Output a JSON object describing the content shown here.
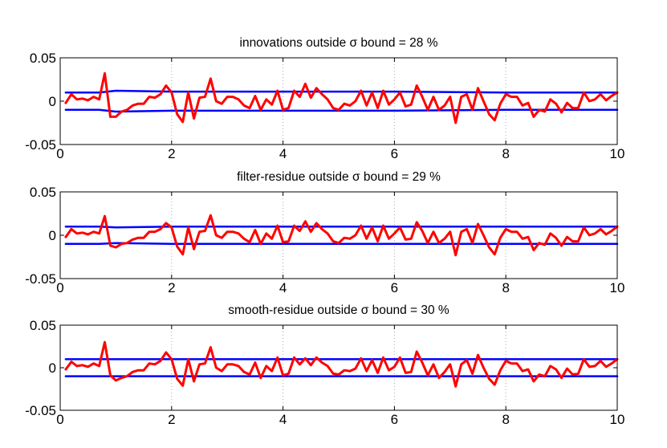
{
  "colors": {
    "bound": "#0000ff",
    "residual": "#ff0000",
    "axis": "#000000",
    "grid": "#aaaaaa"
  },
  "chart_data": [
    {
      "type": "line",
      "title": "innovations outside σ bound = 28 %",
      "xlim": [
        0,
        10
      ],
      "ylim": [
        -0.05,
        0.05
      ],
      "xticks": [
        0,
        2,
        4,
        6,
        8,
        10
      ],
      "xtick_labels": [
        "0",
        "2",
        "4",
        "6",
        "8",
        "10"
      ],
      "yticks": [
        -0.05,
        0,
        0.05
      ],
      "ytick_labels": [
        "-0.05",
        "0",
        "0.05"
      ],
      "grid": "vertical dotted at x ticks",
      "series": [
        {
          "values_kind": "upper bound",
          "x": [
            0.1,
            0.7,
            1.0,
            2.0,
            4.0,
            6.0,
            8.0,
            10.0
          ],
          "y": [
            0.01,
            0.01,
            0.012,
            0.011,
            0.011,
            0.011,
            0.01,
            0.01
          ]
        },
        {
          "values_kind": "lower bound",
          "x": [
            0.1,
            0.7,
            1.0,
            2.0,
            4.0,
            6.0,
            8.0,
            10.0
          ],
          "y": [
            -0.01,
            -0.01,
            -0.012,
            -0.011,
            -0.011,
            -0.011,
            -0.01,
            -0.01
          ]
        },
        {
          "values_kind": "residual",
          "x": [
            0.1,
            0.2,
            0.3,
            0.4,
            0.5,
            0.6,
            0.7,
            0.8,
            0.9,
            1.0,
            1.1,
            1.2,
            1.3,
            1.4,
            1.5,
            1.6,
            1.7,
            1.8,
            1.9,
            2.0,
            2.1,
            2.2,
            2.3,
            2.4,
            2.5,
            2.6,
            2.7,
            2.8,
            2.9,
            3.0,
            3.1,
            3.2,
            3.3,
            3.4,
            3.5,
            3.6,
            3.7,
            3.8,
            3.9,
            4.0,
            4.1,
            4.2,
            4.3,
            4.4,
            4.5,
            4.6,
            4.7,
            4.8,
            4.9,
            5.0,
            5.1,
            5.2,
            5.3,
            5.4,
            5.5,
            5.6,
            5.7,
            5.8,
            5.9,
            6.0,
            6.1,
            6.2,
            6.3,
            6.4,
            6.5,
            6.6,
            6.7,
            6.8,
            6.9,
            7.0,
            7.1,
            7.2,
            7.3,
            7.4,
            7.5,
            7.6,
            7.7,
            7.8,
            7.9,
            8.0,
            8.1,
            8.2,
            8.3,
            8.4,
            8.5,
            8.6,
            8.7,
            8.8,
            8.9,
            9.0,
            9.1,
            9.2,
            9.3,
            9.4,
            9.5,
            9.6,
            9.7,
            9.8,
            9.9,
            10.0
          ],
          "y": [
            -0.002,
            0.008,
            0.002,
            0.003,
            0.001,
            0.005,
            0.002,
            0.032,
            -0.018,
            -0.018,
            -0.012,
            -0.01,
            -0.005,
            -0.003,
            -0.003,
            0.005,
            0.004,
            0.008,
            0.018,
            0.01,
            -0.015,
            -0.024,
            0.01,
            -0.02,
            0.004,
            0.005,
            0.026,
            0.0,
            -0.003,
            0.005,
            0.005,
            0.002,
            -0.005,
            -0.008,
            0.006,
            -0.01,
            0.002,
            -0.004,
            0.012,
            -0.01,
            -0.008,
            0.012,
            0.005,
            0.02,
            0.004,
            0.015,
            0.008,
            0.002,
            -0.008,
            -0.01,
            -0.003,
            -0.005,
            0.0,
            0.012,
            -0.005,
            0.01,
            -0.008,
            0.012,
            -0.004,
            0.002,
            0.01,
            -0.006,
            -0.004,
            0.018,
            0.005,
            -0.01,
            0.005,
            -0.01,
            -0.005,
            0.005,
            -0.025,
            0.005,
            0.008,
            -0.01,
            0.015,
            0.0,
            -0.015,
            -0.022,
            -0.003,
            0.008,
            0.005,
            0.005,
            -0.005,
            -0.002,
            -0.018,
            -0.01,
            -0.012,
            0.002,
            -0.003,
            -0.013,
            -0.002,
            -0.008,
            -0.008,
            0.01,
            0.0,
            0.002,
            0.008,
            0.001,
            0.006,
            0.01
          ]
        }
      ]
    },
    {
      "type": "line",
      "title": "filter-residue outside σ bound = 29 %",
      "xlim": [
        0,
        10
      ],
      "ylim": [
        -0.05,
        0.05
      ],
      "xticks": [
        0,
        2,
        4,
        6,
        8,
        10
      ],
      "xtick_labels": [
        "0",
        "2",
        "4",
        "6",
        "8",
        "10"
      ],
      "yticks": [
        -0.05,
        0,
        0.05
      ],
      "ytick_labels": [
        "-0.05",
        "0",
        "0.05"
      ],
      "grid": "vertical dotted at x ticks",
      "series": [
        {
          "values_kind": "upper bound",
          "x": [
            0.1,
            0.7,
            1.0,
            2.0,
            4.0,
            6.0,
            8.0,
            10.0
          ],
          "y": [
            0.01,
            0.01,
            0.009,
            0.01,
            0.01,
            0.01,
            0.01,
            0.01
          ]
        },
        {
          "values_kind": "lower bound",
          "x": [
            0.1,
            0.7,
            1.0,
            2.0,
            4.0,
            6.0,
            8.0,
            10.0
          ],
          "y": [
            -0.01,
            -0.01,
            -0.009,
            -0.01,
            -0.01,
            -0.01,
            -0.01,
            -0.01
          ]
        },
        {
          "values_kind": "residual",
          "x": [
            0.1,
            0.2,
            0.3,
            0.4,
            0.5,
            0.6,
            0.7,
            0.8,
            0.9,
            1.0,
            1.1,
            1.2,
            1.3,
            1.4,
            1.5,
            1.6,
            1.7,
            1.8,
            1.9,
            2.0,
            2.1,
            2.2,
            2.3,
            2.4,
            2.5,
            2.6,
            2.7,
            2.8,
            2.9,
            3.0,
            3.1,
            3.2,
            3.3,
            3.4,
            3.5,
            3.6,
            3.7,
            3.8,
            3.9,
            4.0,
            4.1,
            4.2,
            4.3,
            4.4,
            4.5,
            4.6,
            4.7,
            4.8,
            4.9,
            5.0,
            5.1,
            5.2,
            5.3,
            5.4,
            5.5,
            5.6,
            5.7,
            5.8,
            5.9,
            6.0,
            6.1,
            6.2,
            6.3,
            6.4,
            6.5,
            6.6,
            6.7,
            6.8,
            6.9,
            7.0,
            7.1,
            7.2,
            7.3,
            7.4,
            7.5,
            7.6,
            7.7,
            7.8,
            7.9,
            8.0,
            8.1,
            8.2,
            8.3,
            8.4,
            8.5,
            8.6,
            8.7,
            8.8,
            8.9,
            9.0,
            9.1,
            9.2,
            9.3,
            9.4,
            9.5,
            9.6,
            9.7,
            9.8,
            9.9,
            10.0
          ],
          "y": [
            -0.002,
            0.007,
            0.002,
            0.003,
            0.001,
            0.004,
            0.002,
            0.022,
            -0.012,
            -0.014,
            -0.01,
            -0.009,
            -0.005,
            -0.003,
            -0.003,
            0.004,
            0.004,
            0.007,
            0.014,
            0.009,
            -0.013,
            -0.022,
            0.009,
            -0.016,
            0.004,
            0.005,
            0.023,
            0.0,
            -0.003,
            0.004,
            0.004,
            0.002,
            -0.004,
            -0.008,
            0.006,
            -0.01,
            0.002,
            -0.004,
            0.011,
            -0.008,
            -0.007,
            0.011,
            0.005,
            0.016,
            0.004,
            0.014,
            0.007,
            0.002,
            -0.007,
            -0.009,
            -0.003,
            -0.004,
            0.0,
            0.011,
            -0.004,
            0.009,
            -0.007,
            0.011,
            -0.004,
            0.002,
            0.009,
            -0.005,
            -0.004,
            0.015,
            0.005,
            -0.009,
            0.004,
            -0.009,
            -0.004,
            0.004,
            -0.023,
            0.004,
            0.007,
            -0.009,
            0.013,
            0.0,
            -0.014,
            -0.022,
            -0.003,
            0.007,
            0.004,
            0.004,
            -0.004,
            -0.002,
            -0.017,
            -0.009,
            -0.011,
            0.002,
            -0.003,
            -0.012,
            -0.002,
            -0.007,
            -0.007,
            0.009,
            0.0,
            0.002,
            0.007,
            0.001,
            0.005,
            0.01
          ]
        }
      ]
    },
    {
      "type": "line",
      "title": "smooth-residue outside σ bound = 30 %",
      "xlim": [
        0,
        10
      ],
      "ylim": [
        -0.05,
        0.05
      ],
      "xticks": [
        0,
        2,
        4,
        6,
        8,
        10
      ],
      "xtick_labels": [
        "0",
        "2",
        "4",
        "6",
        "8",
        "10"
      ],
      "yticks": [
        -0.05,
        0,
        0.05
      ],
      "ytick_labels": [
        "-0.05",
        "0",
        "0.05"
      ],
      "grid": "vertical dotted at x ticks",
      "series": [
        {
          "values_kind": "upper bound",
          "x": [
            0.1,
            10.0
          ],
          "y": [
            0.01,
            0.01
          ]
        },
        {
          "values_kind": "lower bound",
          "x": [
            0.1,
            10.0
          ],
          "y": [
            -0.01,
            -0.01
          ]
        },
        {
          "values_kind": "residual",
          "x": [
            0.1,
            0.2,
            0.3,
            0.4,
            0.5,
            0.6,
            0.7,
            0.8,
            0.9,
            1.0,
            1.1,
            1.2,
            1.3,
            1.4,
            1.5,
            1.6,
            1.7,
            1.8,
            1.9,
            2.0,
            2.1,
            2.2,
            2.3,
            2.4,
            2.5,
            2.6,
            2.7,
            2.8,
            2.9,
            3.0,
            3.1,
            3.2,
            3.3,
            3.4,
            3.5,
            3.6,
            3.7,
            3.8,
            3.9,
            4.0,
            4.1,
            4.2,
            4.3,
            4.4,
            4.5,
            4.6,
            4.7,
            4.8,
            4.9,
            5.0,
            5.1,
            5.2,
            5.3,
            5.4,
            5.5,
            5.6,
            5.7,
            5.8,
            5.9,
            6.0,
            6.1,
            6.2,
            6.3,
            6.4,
            6.5,
            6.6,
            6.7,
            6.8,
            6.9,
            7.0,
            7.1,
            7.2,
            7.3,
            7.4,
            7.5,
            7.6,
            7.7,
            7.8,
            7.9,
            8.0,
            8.1,
            8.2,
            8.3,
            8.4,
            8.5,
            8.6,
            8.7,
            8.8,
            8.9,
            9.0,
            9.1,
            9.2,
            9.3,
            9.4,
            9.5,
            9.6,
            9.7,
            9.8,
            9.9,
            10.0
          ],
          "y": [
            -0.002,
            0.007,
            0.002,
            0.003,
            0.001,
            0.005,
            0.002,
            0.03,
            -0.009,
            -0.015,
            -0.012,
            -0.01,
            -0.005,
            -0.003,
            -0.003,
            0.005,
            0.004,
            0.008,
            0.018,
            0.01,
            -0.013,
            -0.021,
            0.01,
            -0.016,
            0.004,
            0.005,
            0.024,
            0.0,
            -0.004,
            0.004,
            0.004,
            0.002,
            -0.005,
            -0.008,
            0.006,
            -0.012,
            0.002,
            -0.004,
            0.012,
            -0.009,
            -0.007,
            0.012,
            0.004,
            0.011,
            0.003,
            0.012,
            0.006,
            0.002,
            -0.007,
            -0.008,
            -0.003,
            -0.004,
            -0.001,
            0.011,
            -0.004,
            0.009,
            -0.006,
            0.012,
            -0.003,
            0.001,
            0.012,
            -0.006,
            -0.005,
            0.019,
            0.006,
            -0.009,
            0.004,
            -0.012,
            -0.005,
            0.004,
            -0.022,
            0.004,
            0.009,
            -0.007,
            0.015,
            0.0,
            -0.013,
            -0.02,
            -0.003,
            0.008,
            0.005,
            0.005,
            -0.004,
            -0.002,
            -0.016,
            -0.008,
            -0.01,
            0.002,
            -0.002,
            -0.012,
            -0.001,
            -0.008,
            -0.007,
            0.01,
            0.001,
            0.002,
            0.008,
            0.001,
            0.005,
            0.01
          ]
        }
      ]
    }
  ]
}
